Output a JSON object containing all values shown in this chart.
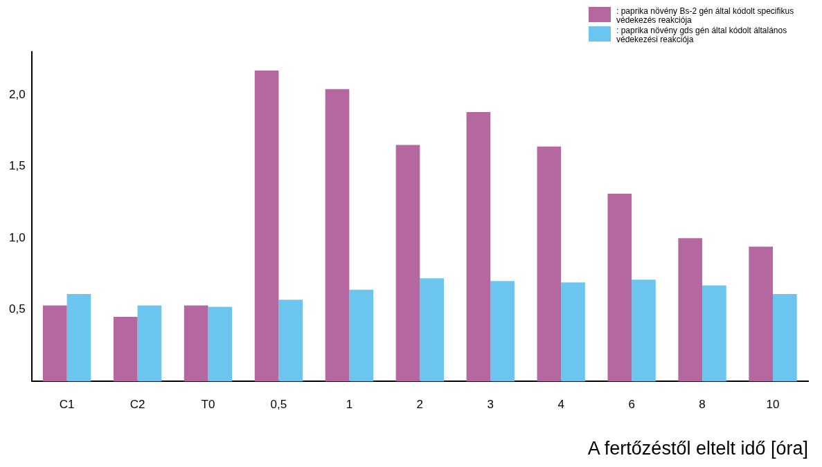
{
  "chart_data": {
    "type": "bar",
    "xlabel": "A fertőzéstől eltelt idő [óra]",
    "categories": [
      "C1",
      "C2",
      "T0",
      "0,5",
      "1",
      "2",
      "3",
      "4",
      "6",
      "8",
      "10"
    ],
    "series": [
      {
        "name": ": paprika növény Bs-2 gén által kódolt specifikus védekezés reakciója",
        "color": "#b5689f",
        "values": [
          0.53,
          0.45,
          0.53,
          2.17,
          2.04,
          1.65,
          1.88,
          1.64,
          1.31,
          1.0,
          0.94
        ]
      },
      {
        "name": ": paprika növény gds gén által kódolt általános védekezési reakciója",
        "color": "#6cc5ee",
        "values": [
          0.61,
          0.53,
          0.52,
          0.57,
          0.64,
          0.72,
          0.7,
          0.69,
          0.71,
          0.67,
          0.61
        ]
      }
    ],
    "ylim": [
      0,
      2.3
    ],
    "yticks": [
      {
        "value": 0.5,
        "label": "0,5"
      },
      {
        "value": 1,
        "label": "1,0"
      },
      {
        "value": 1.5,
        "label": "1,5"
      },
      {
        "value": 2,
        "label": "2,0"
      }
    ],
    "grid": false,
    "legend": "top right"
  }
}
